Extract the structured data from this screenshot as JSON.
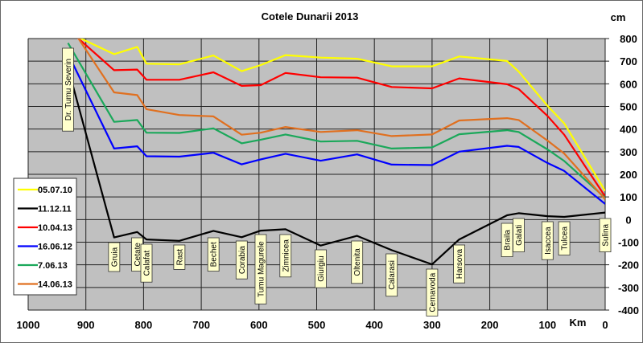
{
  "chart_data": {
    "type": "line",
    "title": "Cotele Dunarii 2013",
    "ylabel": "cm",
    "xlabel": "Km",
    "xlim": [
      1000,
      0
    ],
    "ylim": [
      -400,
      800
    ],
    "x_ticks": [
      "1000",
      "900",
      "800",
      "700",
      "600",
      "500",
      "400",
      "300",
      "200",
      "100",
      "0"
    ],
    "y_ticks": [
      "800",
      "700",
      "600",
      "500",
      "400",
      "300",
      "200",
      "100",
      "0",
      "-100",
      "-200",
      "-300",
      "-400"
    ],
    "grid": true,
    "legend_placement": "left",
    "stations": [
      {
        "name": "Dr. Tumu  Severin",
        "km": 931
      },
      {
        "name": "Gruia",
        "km": 851
      },
      {
        "name": "Cetate",
        "km": 811
      },
      {
        "name": "Calafat",
        "km": 795
      },
      {
        "name": "Rast",
        "km": 738
      },
      {
        "name": "Bechet",
        "km": 679
      },
      {
        "name": "Corabia",
        "km": 630
      },
      {
        "name": "Tumu  Magurele",
        "km": 597
      },
      {
        "name": "Zimnicea",
        "km": 554
      },
      {
        "name": "Giurgiu",
        "km": 493
      },
      {
        "name": "Oltenita",
        "km": 430
      },
      {
        "name": "Calarasi",
        "km": 370
      },
      {
        "name": "Cernavoda",
        "km": 300
      },
      {
        "name": "Harsova",
        "km": 253
      },
      {
        "name": "Braila",
        "km": 170
      },
      {
        "name": "Galati",
        "km": 150
      },
      {
        "name": "Isaccea",
        "km": 100
      },
      {
        "name": "Tulcea",
        "km": 71
      },
      {
        "name": "Sulina",
        "km": 0
      }
    ],
    "series": [
      {
        "name": "05.07.10",
        "color": "#ffff00",
        "values": [
          827,
          731,
          763,
          689,
          686,
          725,
          656,
          683,
          727,
          716,
          711,
          677,
          677,
          721,
          701,
          654,
          503,
          425,
          126
        ]
      },
      {
        "name": "11.12.11",
        "color": "#000000",
        "values": [
          672,
          -79,
          -55,
          -88,
          -94,
          -50,
          -78,
          -49,
          -43,
          -115,
          -72,
          -135,
          -198,
          -88,
          19,
          28,
          15,
          12,
          31
        ]
      },
      {
        "name": "10.04.13",
        "color": "#ff0000",
        "values": [
          841,
          660,
          663,
          618,
          618,
          651,
          591,
          594,
          648,
          629,
          627,
          586,
          580,
          624,
          598,
          577,
          458,
          375,
          102
        ]
      },
      {
        "name": "16.06.12",
        "color": "#0000ff",
        "values": [
          733,
          314,
          324,
          280,
          278,
          295,
          244,
          266,
          291,
          260,
          288,
          243,
          241,
          300,
          326,
          321,
          250,
          215,
          69
        ]
      },
      {
        "name": "7.06.13",
        "color": "#1aa85a",
        "values": [
          780,
          432,
          440,
          384,
          383,
          403,
          337,
          353,
          376,
          345,
          348,
          314,
          319,
          377,
          395,
          387,
          310,
          259,
          96
        ]
      },
      {
        "name": "14.06.13",
        "color": "#e07020",
        "values": [
          870,
          562,
          550,
          488,
          462,
          456,
          375,
          384,
          409,
          387,
          395,
          369,
          376,
          438,
          448,
          440,
          349,
          292,
          90
        ]
      }
    ]
  }
}
